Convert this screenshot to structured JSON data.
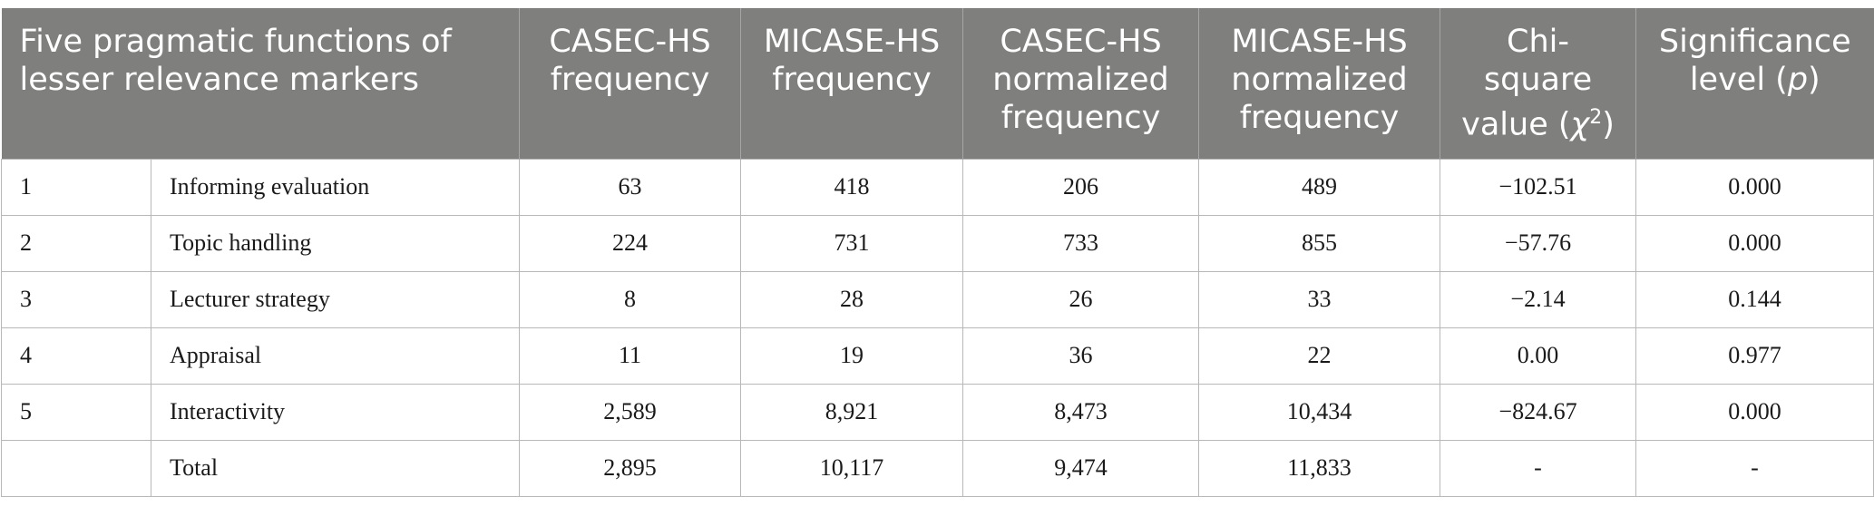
{
  "headers": {
    "functions": "Five pragmatic functions of lesser relevance markers",
    "casec_freq": "CASEC-HS frequency",
    "micase_freq": "MICASE-HS frequency",
    "casec_norm": "CASEC-HS normalized frequency",
    "micase_norm": "MICASE-HS normalized frequency",
    "chi_prefix": "Chi-square value (",
    "chi_symbol": "χ",
    "chi_exp": "2",
    "chi_suffix": ")",
    "sig_prefix": "Significance level (",
    "sig_symbol": "p",
    "sig_suffix": ")"
  },
  "rows": [
    {
      "num": "1",
      "function": "Informing evaluation",
      "casec_freq": "63",
      "micase_freq": "418",
      "casec_norm": "206",
      "micase_norm": "489",
      "chi": "−102.51",
      "p": "0.000"
    },
    {
      "num": "2",
      "function": "Topic handling",
      "casec_freq": "224",
      "micase_freq": "731",
      "casec_norm": "733",
      "micase_norm": "855",
      "chi": "−57.76",
      "p": "0.000"
    },
    {
      "num": "3",
      "function": "Lecturer strategy",
      "casec_freq": "8",
      "micase_freq": "28",
      "casec_norm": "26",
      "micase_norm": "33",
      "chi": "−2.14",
      "p": "0.144"
    },
    {
      "num": "4",
      "function": "Appraisal",
      "casec_freq": "11",
      "micase_freq": "19",
      "casec_norm": "36",
      "micase_norm": "22",
      "chi": "0.00",
      "p": "0.977"
    },
    {
      "num": "5",
      "function": "Interactivity",
      "casec_freq": "2,589",
      "micase_freq": "8,921",
      "casec_norm": "8,473",
      "micase_norm": "10,434",
      "chi": "−824.67",
      "p": "0.000"
    },
    {
      "num": "",
      "function": "Total",
      "casec_freq": "2,895",
      "micase_freq": "10,117",
      "casec_norm": "9,474",
      "micase_norm": "11,833",
      "chi": "-",
      "p": "-"
    }
  ]
}
